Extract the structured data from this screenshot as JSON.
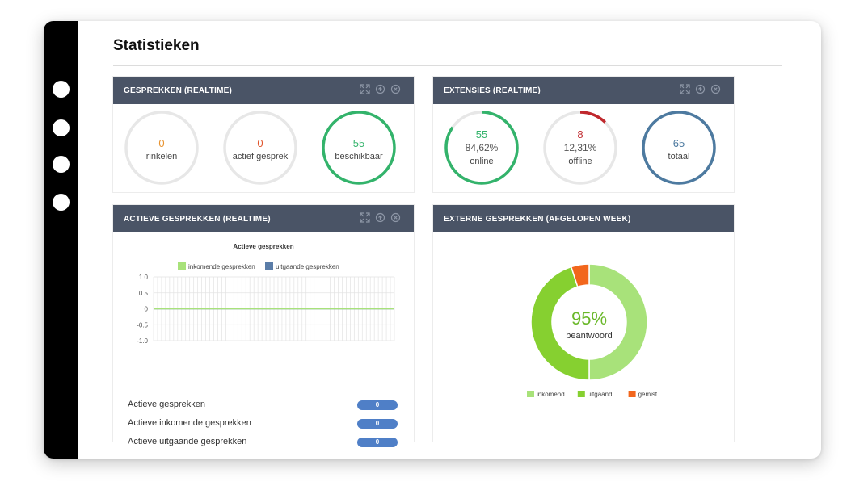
{
  "page": {
    "title": "Statistieken"
  },
  "panels": {
    "gesprekken": {
      "title": "GESPREKKEN (REALTIME)",
      "stats": [
        {
          "value": "0",
          "label": "rinkelen",
          "color": "#e8922e"
        },
        {
          "value": "0",
          "label": "actief gesprek",
          "color": "#e0542b"
        },
        {
          "value": "55",
          "label": "beschikbaar",
          "color": "#33b36b"
        }
      ]
    },
    "extensies": {
      "title": "EXTENSIES (REALTIME)",
      "stats": [
        {
          "value": "55",
          "percent": "84,62%",
          "label": "online",
          "color": "#33b36b",
          "fraction": 0.8462
        },
        {
          "value": "8",
          "percent": "12,31%",
          "label": "offline",
          "color": "#c0282d",
          "fraction": 0.1231
        },
        {
          "value": "65",
          "label": "totaal",
          "color": "#4d7aa0",
          "fraction": 1
        }
      ]
    },
    "actieve": {
      "title": "ACTIEVE GESPREKKEN (REALTIME)",
      "rows": [
        {
          "label": "Actieve gesprekken",
          "value": "0"
        },
        {
          "label": "Actieve inkomende gesprekken",
          "value": "0"
        },
        {
          "label": "Actieve uitgaande gesprekken",
          "value": "0"
        }
      ]
    },
    "externe": {
      "title": "EXTERNE GESPREKKEN (AFGELOPEN WEEK)",
      "center_value": "95%",
      "center_label": "beantwoord"
    }
  },
  "chart_data": [
    {
      "type": "line",
      "title": "Actieve gesprekken",
      "series": [
        {
          "name": "inkomende gesprekken",
          "color": "#a8e27a",
          "values": [
            0
          ]
        },
        {
          "name": "uitgaande gesprekken",
          "color": "#5b7da8",
          "values": [
            0
          ]
        }
      ],
      "yticks": [
        "1.0",
        "0.5",
        "0",
        "-0.5",
        "-1.0"
      ],
      "ylim": [
        -1,
        1
      ],
      "grid": true,
      "legend": "top"
    },
    {
      "type": "pie",
      "title": "",
      "categories": [
        "inkomend",
        "uitgaand",
        "gemist"
      ],
      "values": [
        50,
        45,
        5
      ],
      "colors": [
        "#a8e27a",
        "#86d030",
        "#f2661c"
      ],
      "legend": "bottom"
    }
  ]
}
